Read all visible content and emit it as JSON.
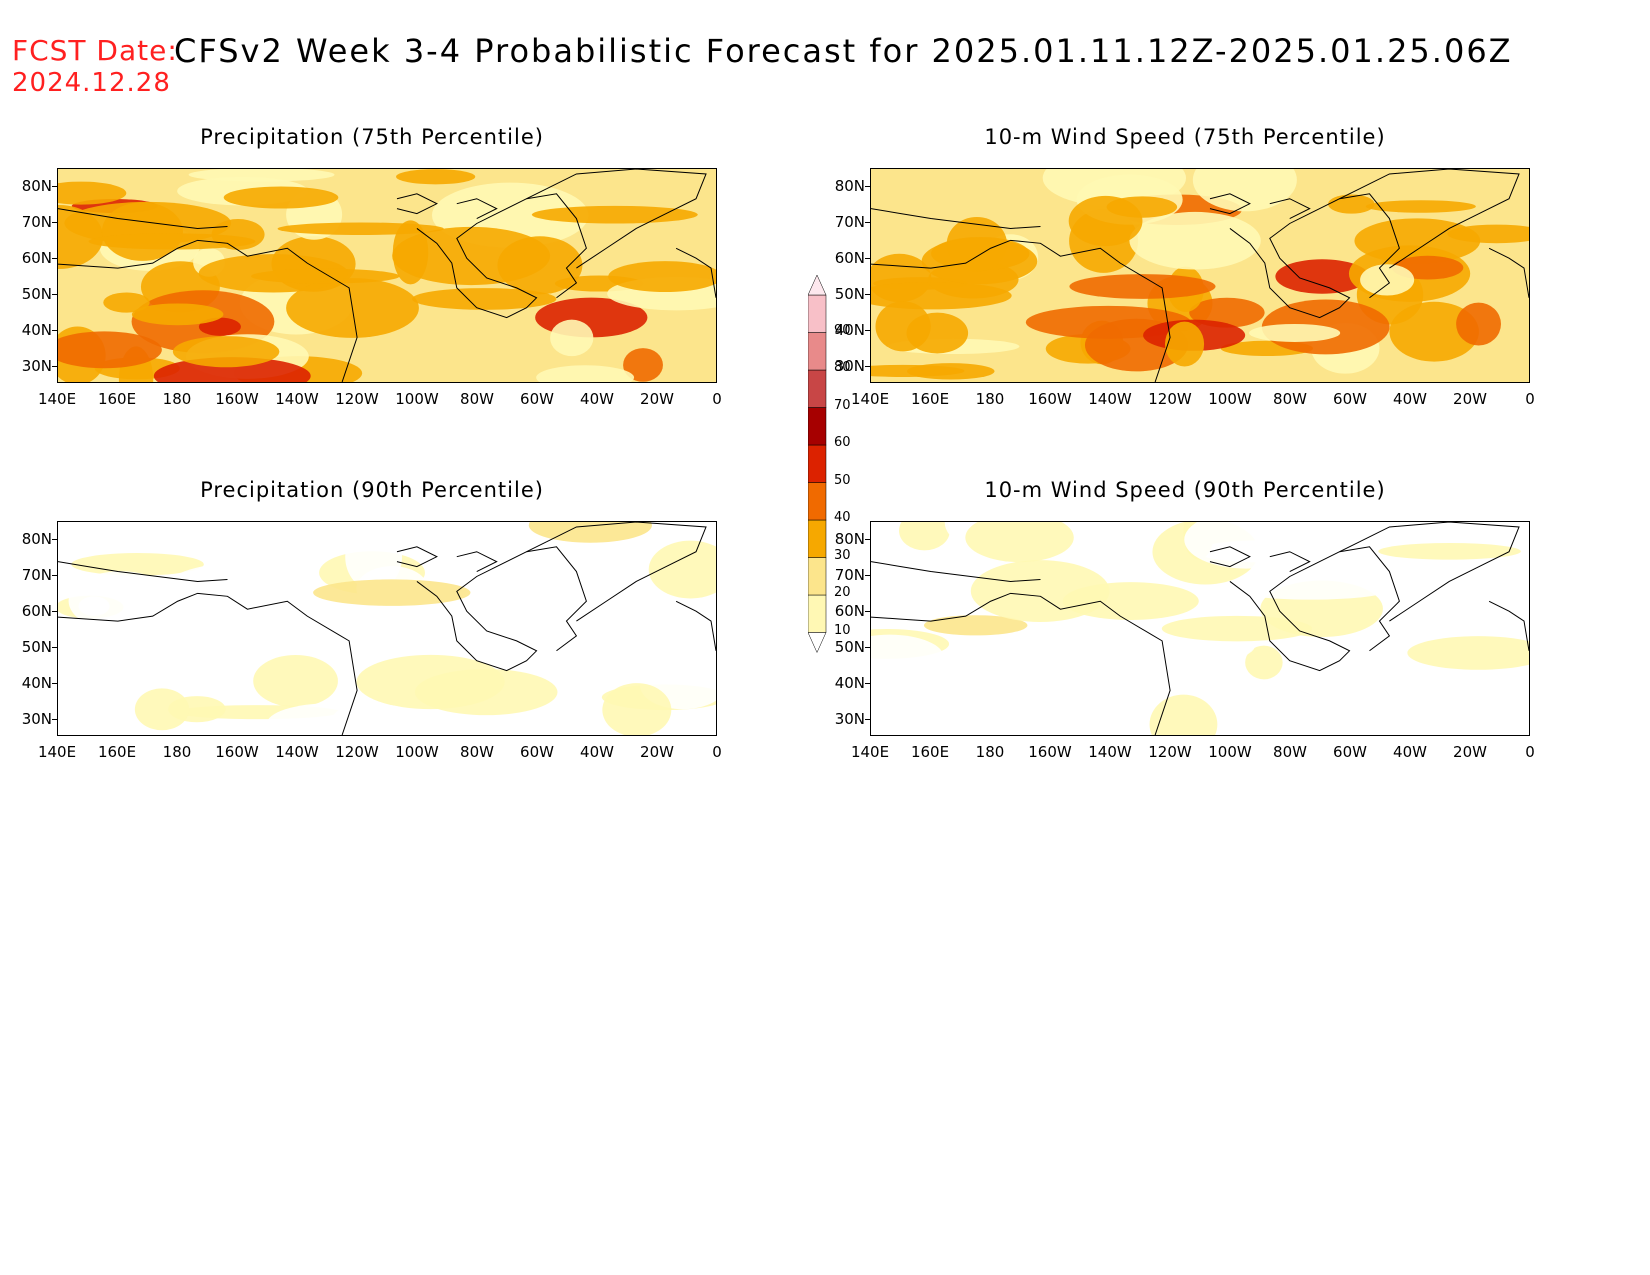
{
  "header": {
    "fcst_label": "FCST Date:",
    "fcst_date": "2024.12.28",
    "title": "CFSv2 Week 3-4 Probabilistic Forecast for 2025.01.11.12Z-2025.01.25.06Z"
  },
  "panels": [
    {
      "title": "Precipitation (75th Percentile)",
      "level": 2
    },
    {
      "title": "10-m Wind Speed (75th Percentile)",
      "level": 2
    },
    {
      "title": "Precipitation (90th Percentile)",
      "level": 1
    },
    {
      "title": "10-m Wind Speed (90th Percentile)",
      "level": 1
    }
  ],
  "axes": {
    "lat_labels": [
      "80N",
      "70N",
      "60N",
      "50N",
      "40N",
      "30N"
    ],
    "lon_labels": [
      "140E",
      "160E",
      "180",
      "160W",
      "140W",
      "120W",
      "100W",
      "80W",
      "60W",
      "40W",
      "20W",
      "0"
    ]
  },
  "colorbar": {
    "levels": [
      "10",
      "20",
      "30",
      "40",
      "50",
      "60",
      "70",
      "80",
      "90"
    ],
    "colors": [
      "#fff8b4",
      "#fce58c",
      "#f6a800",
      "#f06a00",
      "#dc2200",
      "#a60000",
      "#c84646",
      "#e88a8a",
      "#f8c0c8"
    ]
  }
}
